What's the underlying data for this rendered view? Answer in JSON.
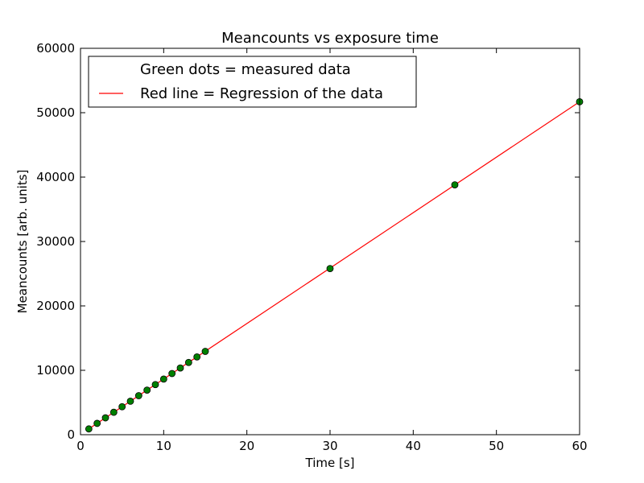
{
  "chart_data": {
    "type": "scatter",
    "title": "Meancounts vs exposure time",
    "xlabel": "Time [s]",
    "ylabel": "Meancounts [arb. units]",
    "xlim": [
      0,
      60
    ],
    "ylim": [
      0,
      60000
    ],
    "xticks": [
      0,
      10,
      20,
      30,
      40,
      50,
      60
    ],
    "yticks": [
      0,
      10000,
      20000,
      30000,
      40000,
      50000,
      60000
    ],
    "grid": false,
    "legend_position": "top-left",
    "series": [
      {
        "name": "Green dots = measured data",
        "kind": "scatter",
        "color": "#008000",
        "x": [
          1,
          2,
          3,
          4,
          5,
          6,
          7,
          8,
          9,
          10,
          11,
          12,
          13,
          14,
          15,
          30,
          45,
          60
        ],
        "y": [
          900,
          1760,
          2620,
          3480,
          4340,
          5200,
          6060,
          6920,
          7780,
          8640,
          9500,
          10360,
          11220,
          12080,
          12940,
          25800,
          38800,
          51700
        ]
      },
      {
        "name": "Red line = Regression of the data",
        "kind": "line",
        "color": "#ff0000",
        "x": [
          1,
          60
        ],
        "y": [
          900,
          51700
        ]
      }
    ]
  }
}
